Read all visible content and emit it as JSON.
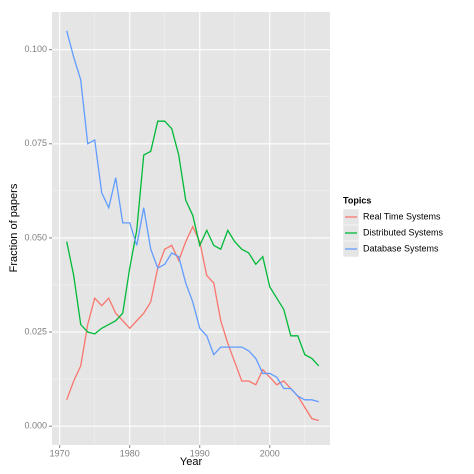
{
  "chart_data": {
    "type": "line",
    "x_label": "Year",
    "y_label": "Fraction of papers",
    "legend_title": "Topics",
    "x": [
      1971,
      1972,
      1973,
      1974,
      1975,
      1976,
      1977,
      1978,
      1979,
      1980,
      1981,
      1982,
      1983,
      1984,
      1985,
      1986,
      1987,
      1988,
      1989,
      1990,
      1991,
      1992,
      1993,
      1994,
      1995,
      1996,
      1997,
      1998,
      1999,
      2000,
      2001,
      2002,
      2003,
      2004,
      2005,
      2006,
      2007
    ],
    "series": [
      {
        "name": "Real Time Systems",
        "color": "#f8766d",
        "values": [
          0.007,
          0.012,
          0.016,
          0.027,
          0.034,
          0.032,
          0.034,
          0.03,
          0.028,
          0.026,
          0.028,
          0.03,
          0.033,
          0.042,
          0.047,
          0.048,
          0.044,
          0.049,
          0.053,
          0.049,
          0.04,
          0.038,
          0.028,
          0.022,
          0.017,
          0.012,
          0.012,
          0.011,
          0.015,
          0.013,
          0.011,
          0.012,
          0.01,
          0.008,
          0.005,
          0.002,
          0.0015
        ]
      },
      {
        "name": "Distributed Systems",
        "color": "#00ba38",
        "values": [
          0.049,
          0.04,
          0.027,
          0.025,
          0.0245,
          0.026,
          0.027,
          0.028,
          0.03,
          0.042,
          0.052,
          0.072,
          0.073,
          0.081,
          0.081,
          0.079,
          0.072,
          0.06,
          0.056,
          0.048,
          0.052,
          0.048,
          0.047,
          0.052,
          0.049,
          0.047,
          0.046,
          0.043,
          0.045,
          0.037,
          0.034,
          0.031,
          0.024,
          0.024,
          0.019,
          0.018,
          0.016
        ]
      },
      {
        "name": "Database Systems",
        "color": "#619cff",
        "values": [
          0.105,
          0.098,
          0.092,
          0.075,
          0.076,
          0.062,
          0.058,
          0.066,
          0.054,
          0.054,
          0.048,
          0.058,
          0.047,
          0.042,
          0.043,
          0.046,
          0.045,
          0.038,
          0.033,
          0.026,
          0.024,
          0.019,
          0.021,
          0.021,
          0.021,
          0.021,
          0.02,
          0.018,
          0.014,
          0.014,
          0.013,
          0.01,
          0.01,
          0.008,
          0.007,
          0.007,
          0.0065
        ]
      }
    ],
    "xlim": [
      1968.9,
      2008.6
    ],
    "ylim": [
      -0.005,
      0.11
    ],
    "xticks": [
      1970,
      1980,
      1990,
      2000
    ],
    "yticks": [
      {
        "value": 0,
        "label": "0.000"
      },
      {
        "value": 0.025,
        "label": "0.025"
      },
      {
        "value": 0.05,
        "label": "0.050"
      },
      {
        "value": 0.075,
        "label": "0.075"
      },
      {
        "value": 0.1,
        "label": "0.100"
      }
    ],
    "grid": true,
    "legend": "right"
  }
}
